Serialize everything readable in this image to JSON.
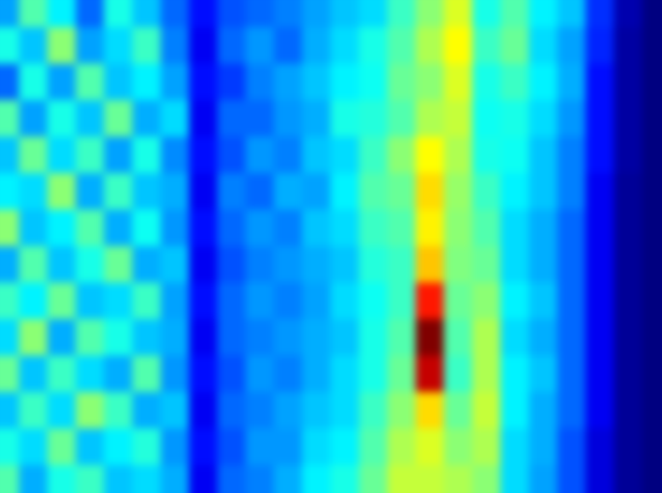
{
  "chart_data": {
    "type": "heatmap",
    "tick_labels": false,
    "cells": [
      [
        35,
        50,
        42,
        30,
        45,
        38,
        30,
        22,
        28,
        30,
        32,
        35,
        38,
        40,
        48,
        55,
        62,
        45,
        50,
        42,
        38,
        25,
        14,
        10
      ],
      [
        45,
        38,
        55,
        35,
        40,
        48,
        32,
        20,
        30,
        34,
        30,
        36,
        40,
        45,
        50,
        58,
        65,
        48,
        52,
        40,
        35,
        24,
        13,
        10
      ],
      [
        30,
        45,
        35,
        50,
        38,
        42,
        35,
        22,
        26,
        32,
        35,
        38,
        42,
        44,
        52,
        55,
        62,
        45,
        48,
        42,
        36,
        22,
        13,
        10
      ],
      [
        50,
        35,
        45,
        38,
        52,
        36,
        40,
        20,
        30,
        30,
        34,
        36,
        45,
        46,
        50,
        58,
        60,
        44,
        45,
        40,
        34,
        22,
        13,
        10
      ],
      [
        38,
        52,
        40,
        48,
        35,
        45,
        33,
        22,
        28,
        34,
        32,
        38,
        40,
        48,
        55,
        65,
        58,
        45,
        44,
        38,
        32,
        22,
        13,
        10
      ],
      [
        42,
        40,
        55,
        36,
        48,
        38,
        36,
        20,
        32,
        30,
        36,
        35,
        42,
        50,
        52,
        68,
        56,
        48,
        42,
        38,
        32,
        20,
        12,
        10
      ],
      [
        55,
        38,
        42,
        50,
        36,
        44,
        34,
        22,
        30,
        34,
        32,
        38,
        40,
        48,
        50,
        66,
        55,
        50,
        40,
        36,
        30,
        20,
        12,
        10
      ],
      [
        36,
        50,
        38,
        45,
        52,
        36,
        38,
        20,
        28,
        32,
        34,
        36,
        38,
        46,
        48,
        70,
        54,
        52,
        40,
        36,
        30,
        20,
        12,
        10
      ],
      [
        48,
        42,
        52,
        38,
        40,
        48,
        35,
        22,
        30,
        34,
        32,
        35,
        40,
        44,
        48,
        85,
        52,
        55,
        42,
        38,
        30,
        20,
        12,
        10
      ],
      [
        40,
        55,
        36,
        50,
        45,
        38,
        36,
        20,
        30,
        32,
        34,
        36,
        38,
        45,
        50,
        98,
        50,
        58,
        40,
        36,
        30,
        20,
        12,
        10
      ],
      [
        52,
        38,
        48,
        40,
        36,
        50,
        34,
        22,
        28,
        34,
        32,
        36,
        40,
        45,
        52,
        92,
        48,
        58,
        42,
        38,
        30,
        20,
        12,
        10
      ],
      [
        38,
        48,
        40,
        55,
        48,
        36,
        38,
        20,
        30,
        32,
        35,
        38,
        40,
        48,
        55,
        68,
        52,
        60,
        42,
        36,
        30,
        20,
        12,
        10
      ],
      [
        45,
        40,
        52,
        38,
        42,
        46,
        34,
        22,
        28,
        34,
        34,
        40,
        42,
        50,
        58,
        62,
        55,
        58,
        40,
        36,
        28,
        18,
        12,
        10
      ],
      [
        50,
        36,
        45,
        48,
        38,
        40,
        36,
        20,
        30,
        32,
        36,
        42,
        45,
        52,
        60,
        60,
        58,
        55,
        40,
        35,
        28,
        18,
        12,
        10
      ]
    ]
  }
}
